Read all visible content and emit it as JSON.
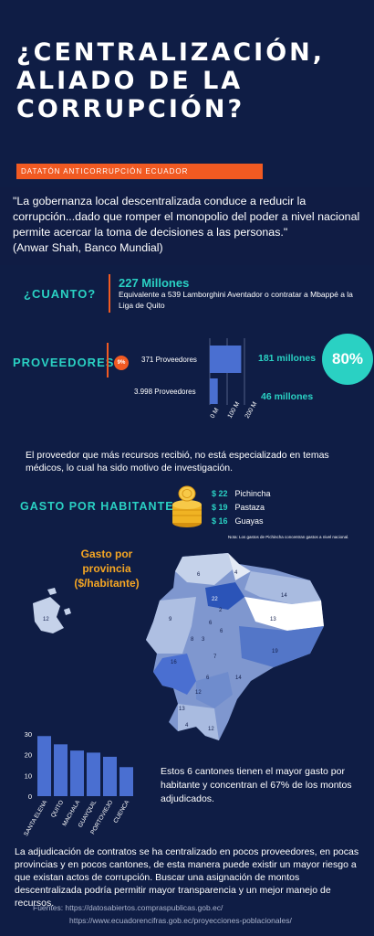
{
  "header": {
    "title_lines": [
      "¿CENTRALIZACIÓN,",
      "ALIADO DE LA",
      "CORRUPCIÓN?"
    ],
    "tag": "DATATÓN ANTICORRUPCIÓN ECUADOR"
  },
  "quote": {
    "text": "\"La gobernanza local descentralizada conduce a reducir la corrupción...dado que romper el monopolio del poder a nivel nacional permite acercar la toma de decisiones a las personas.\"",
    "author": "(Anwar Shah, Banco Mundial)"
  },
  "cuanto": {
    "label": "¿CUANTO?",
    "amount": "227 Millones",
    "description": "Equivalente a 539 Lamborghini Aventador o contratar a Mbappé a la Liga de Quito"
  },
  "proveedores": {
    "label": "PROVEEDORES",
    "small_pct": "9%",
    "big_pct": "80%",
    "bar_names": [
      "371 Proveedores",
      "3.998 Proveedores"
    ],
    "bar_values": [
      "181 millones",
      "46 millones"
    ],
    "axis_ticks": [
      "0 M",
      "100 M",
      "200 M"
    ]
  },
  "chart_data": [
    {
      "type": "bar",
      "orientation": "horizontal",
      "categories": [
        "371 Proveedores",
        "3.998 Proveedores"
      ],
      "values": [
        181,
        46
      ],
      "ylim": [
        0,
        200
      ],
      "axis_ticks": [
        "0 M",
        "100 M",
        "200 M"
      ]
    },
    {
      "type": "bar",
      "categories": [
        "SANTA ELENA",
        "QUITO",
        "MACHALA",
        "GUAYQUIL",
        "PORTOVIEJO",
        "CUENCA"
      ],
      "values": [
        29,
        25,
        22,
        21,
        19,
        14
      ],
      "ylim": [
        0,
        30
      ],
      "yticks": [
        "0",
        "10",
        "20",
        "30"
      ]
    }
  ],
  "statement1": "El proveedor que más recursos recibió, no está especializado en temas médicos, lo cual ha sido motivo de investigación.",
  "gasto": {
    "label": "GASTO POR HABITANTE",
    "rows": [
      {
        "amount": "$ 22",
        "name": "Pichincha"
      },
      {
        "amount": "$ 19",
        "name": "Pastaza"
      },
      {
        "amount": "$ 16",
        "name": "Guayas"
      }
    ],
    "note": "Nota: Los gastos de Pichincha concentran gastos a nivel nacional."
  },
  "map": {
    "title_lines": [
      "Gasto por provincia",
      "($/habitante)"
    ],
    "labels": [
      "12",
      "6",
      "4",
      "22",
      "14",
      "9",
      "6",
      "13",
      "8",
      "3",
      "7",
      "19",
      "16",
      "6",
      "6",
      "14",
      "13",
      "4",
      "12",
      "12",
      "2"
    ]
  },
  "chart_caption": "Estos 6 cantones tienen el mayor gasto por habitante y concentran el 67% de los montos adjudicados.",
  "conclusion": "La adjudicación de contratos se ha centralizado en pocos proveedores, en pocas provincias y en pocos cantones, de esta manera puede existir un mayor riesgo a que existan actos de corrupción. Buscar una asignación de montos descentralizada podría permitir mayor transparencia y un mejor manejo de recursos.",
  "sources": {
    "line1": "Fuentes: https://datosabiertos.compraspublicas.gob.ec/",
    "line2": "https://www.ecuadorencifras.gob.ec/proyecciones-poblacionales/"
  },
  "colors": {
    "background": "#0f1d45",
    "accent_orange": "#f15a22",
    "accent_teal": "#2ad1c3",
    "bar_blue": "#4a6fd1",
    "map_title": "#f5a623"
  }
}
